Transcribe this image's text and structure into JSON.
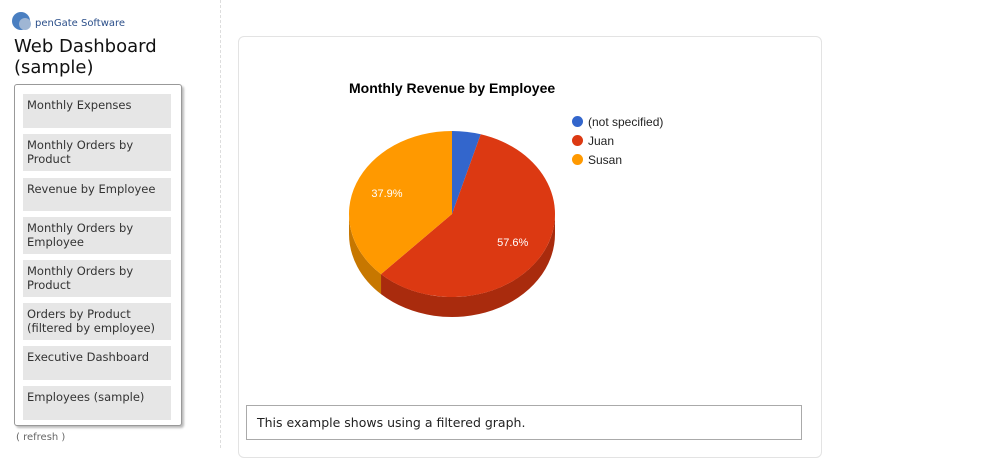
{
  "brand": {
    "logo_text": "penGate Software"
  },
  "app": {
    "title_line1": "Web Dashboard",
    "title_line2": "(sample)"
  },
  "nav": {
    "items": [
      {
        "label": "Monthly Expenses"
      },
      {
        "label": "Monthly Orders by Product"
      },
      {
        "label": "Revenue by Employee"
      },
      {
        "label": "Monthly Orders by Employee"
      },
      {
        "label": "Monthly Orders by Product"
      },
      {
        "label": "Orders by Product (filtered by employee)"
      },
      {
        "label": "Executive Dashboard"
      },
      {
        "label": "Employees (sample)"
      }
    ],
    "refresh_label": "( refresh )"
  },
  "description": "This example shows using a filtered graph.",
  "chart_data": {
    "type": "pie",
    "title": "Monthly Revenue by Employee",
    "legend_position": "right",
    "slices": [
      {
        "name": "(not specified)",
        "value": 4.5,
        "label": "",
        "color": "#3366cc",
        "side_color": "#2a519f"
      },
      {
        "name": "Juan",
        "value": 57.6,
        "label": "57.6%",
        "color": "#dc3912",
        "side_color": "#a92b0d"
      },
      {
        "name": "Susan",
        "value": 37.9,
        "label": "37.9%",
        "color": "#ff9900",
        "side_color": "#c77700"
      }
    ]
  }
}
